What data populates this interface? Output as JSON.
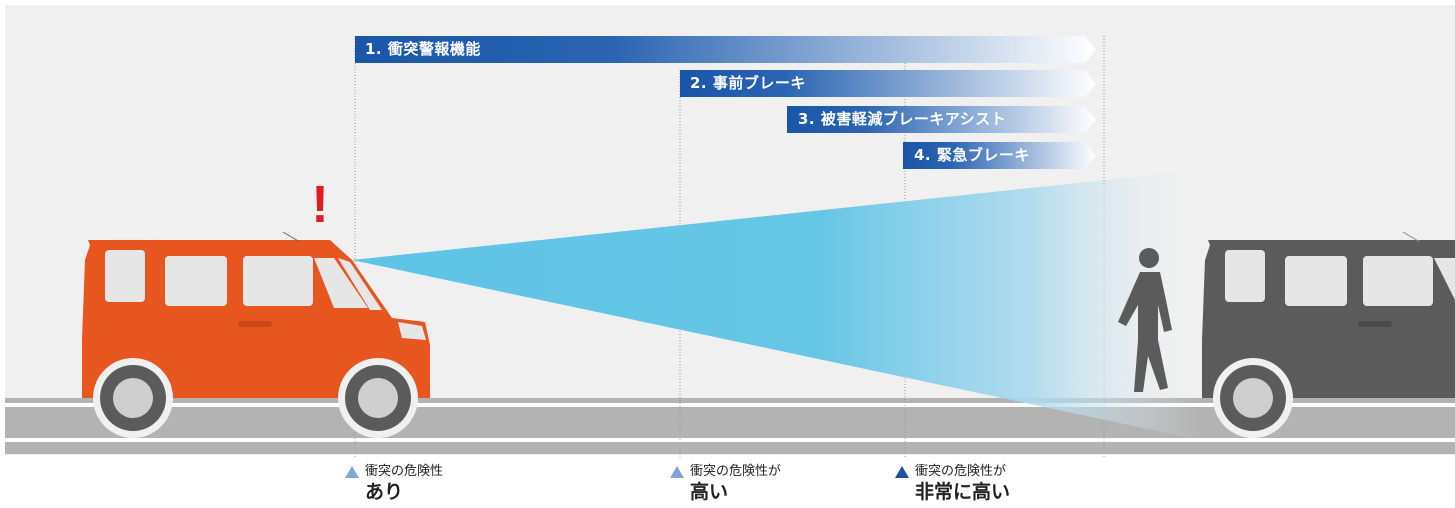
{
  "colors": {
    "background": "#f0f0f0",
    "road": "#b3b3b3",
    "road_line": "#ffffff",
    "bar_start": "#1a56a8",
    "bar_end": "#ffffff",
    "beam": "#5ec3e6",
    "front_car": "#e8561f",
    "rear_car": "#5b5b5b",
    "alert": "#e11b22",
    "marker_light": "#7fa6d6",
    "marker_dark": "#1f4f9e"
  },
  "bars": [
    {
      "label": "1. 衝突警報機能"
    },
    {
      "label": "2. 事前ブレーキ"
    },
    {
      "label": "3. 被害軽減ブレーキアシスト"
    },
    {
      "label": "4. 緊急ブレーキ"
    }
  ],
  "markers": [
    {
      "small": "衝突の危険性",
      "big": "あり",
      "style": "light"
    },
    {
      "small": "衝突の危険性が",
      "big": "高い",
      "style": "light"
    },
    {
      "small": "衝突の危険性が",
      "big": "非常に高い",
      "style": "dark"
    }
  ],
  "alert_mark": "!"
}
